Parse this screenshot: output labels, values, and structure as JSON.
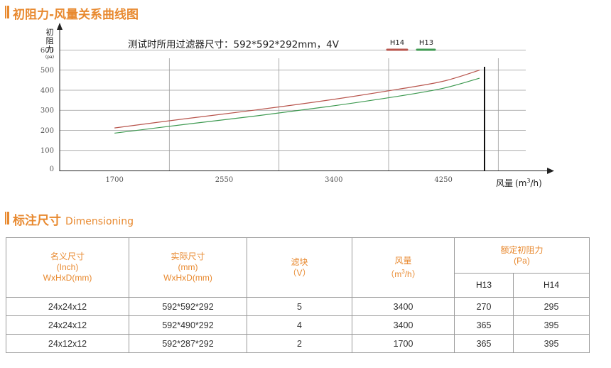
{
  "page": {
    "chart_section_title": "初阻力-风量关系曲线图",
    "dim_section_title": "标注尺寸",
    "dim_section_subtitle": "Dimensioning",
    "accent_color": "#e8892f"
  },
  "chart_data": {
    "type": "line",
    "title": "测试时所用过滤器尺寸：592*592*292mm，4V",
    "ylabel_lines": [
      "初",
      "阻",
      "力",
      "(pa)"
    ],
    "xlabel": "风量",
    "xlabel_unit_prefix": "m",
    "xlabel_unit_sup": "3",
    "xlabel_unit_suffix": "/h",
    "x_ticks": [
      "1700",
      "2550",
      "3400",
      "4250"
    ],
    "y_ticks": [
      "0",
      "100",
      "200",
      "300",
      "400",
      "500",
      "600"
    ],
    "xlim": [
      1275,
      4888
    ],
    "ylim": [
      0,
      630
    ],
    "grid": true,
    "legend_position": "top-right",
    "series": [
      {
        "name": "H14",
        "color": "#b8554d",
        "points": [
          [
            1700,
            212
          ],
          [
            2250,
            258
          ],
          [
            2800,
            302
          ],
          [
            3350,
            350
          ],
          [
            3900,
            405
          ],
          [
            4250,
            445
          ],
          [
            4530,
            500
          ]
        ]
      },
      {
        "name": "H13",
        "color": "#3f9a52",
        "points": [
          [
            1700,
            186
          ],
          [
            2250,
            230
          ],
          [
            2800,
            272
          ],
          [
            3350,
            318
          ],
          [
            3900,
            370
          ],
          [
            4250,
            410
          ],
          [
            4530,
            460
          ]
        ]
      }
    ]
  },
  "table": {
    "col_headers": [
      {
        "lines": [
          "名义尺寸",
          "(Inch)",
          "WxHxD(mm)"
        ]
      },
      {
        "lines": [
          "实际尺寸",
          "(mm)",
          "WxHxD(mm)"
        ]
      },
      {
        "lines": [
          "滤块",
          "（V）"
        ]
      },
      {
        "lines": [
          "风量"
        ]
      },
      {
        "lines": [
          "额定初阻力",
          "(Pa)"
        ]
      }
    ],
    "airflow_unit_prefix": "（m",
    "airflow_unit_sup": "3",
    "airflow_unit_suffix": "/h）",
    "sub_headers": [
      "H13",
      "H14"
    ],
    "rows": [
      [
        "24x24x12",
        "592*592*292",
        "5",
        "3400",
        "270",
        "295"
      ],
      [
        "24x24x12",
        "592*490*292",
        "4",
        "3400",
        "365",
        "395"
      ],
      [
        "24x12x12",
        "592*287*292",
        "2",
        "1700",
        "365",
        "395"
      ]
    ]
  }
}
